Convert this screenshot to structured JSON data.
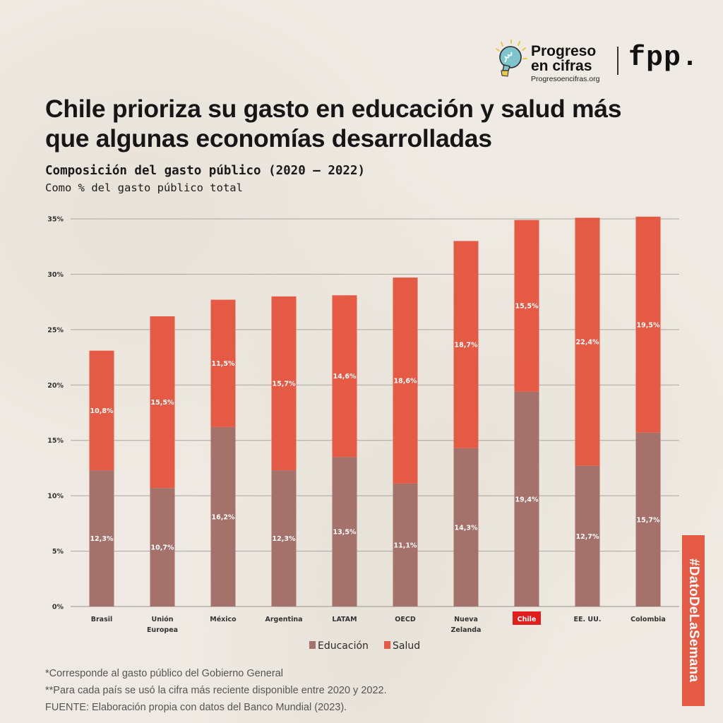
{
  "brand": {
    "logo_line1": "Progreso",
    "logo_line2": "en cifras",
    "logo_url": "Progresoencifras.org",
    "partner": "fpp.",
    "icon": "lightbulb-icon"
  },
  "header": {
    "title": "Chile prioriza su gasto en educación y salud más que algunas economías desarrolladas",
    "subtitle": "Composición del gasto público (2020 – 2022)",
    "subtitle2": "Como % del gasto público total"
  },
  "colors": {
    "educacion": "#a5716b",
    "salud": "#e45a44",
    "highlight": "#e01e1e",
    "grid": "#a9a5a0",
    "background": "#efebe4"
  },
  "chart_data": {
    "type": "bar",
    "stacked": true,
    "title": "Composición del gasto público (2020 – 2022)",
    "subtitle": "Como % del gasto público total",
    "xlabel": "",
    "ylabel": "",
    "ylim": [
      0,
      35
    ],
    "yticks": [
      0,
      5,
      10,
      15,
      20,
      25,
      30,
      35
    ],
    "ytick_labels": [
      "0%",
      "5%",
      "10%",
      "15%",
      "20%",
      "25%",
      "30%",
      "35%"
    ],
    "grid": true,
    "categories": [
      "Brasil",
      "Unión Europea",
      "México",
      "Argentina",
      "LATAM",
      "OECD",
      "Nueva Zelanda",
      "Chile",
      "EE. UU.",
      "Colombia"
    ],
    "category_lines": [
      [
        "Brasil"
      ],
      [
        "Unión",
        "Europea"
      ],
      [
        "México"
      ],
      [
        "Argentina"
      ],
      [
        "LATAM"
      ],
      [
        "OECD"
      ],
      [
        "Nueva",
        "Zelanda"
      ],
      [
        "Chile"
      ],
      [
        "EE. UU."
      ],
      [
        "Colombia"
      ]
    ],
    "highlighted_category": "Chile",
    "series": [
      {
        "name": "Educación",
        "values": [
          12.3,
          10.7,
          16.2,
          12.3,
          13.5,
          11.1,
          14.3,
          19.4,
          12.7,
          15.7
        ],
        "labels": [
          "12,3%",
          "10,7%",
          "16,2%",
          "12,3%",
          "13,5%",
          "11,1%",
          "14,3%",
          "19,4%",
          "12,7%",
          "15,7%"
        ]
      },
      {
        "name": "Salud",
        "values": [
          10.8,
          15.5,
          11.5,
          15.7,
          14.6,
          18.6,
          18.7,
          15.5,
          22.4,
          19.5
        ],
        "labels": [
          "10,8%",
          "15,5%",
          "11,5%",
          "15,7%",
          "14,6%",
          "18,6%",
          "18,7%",
          "15,5%",
          "22,4%",
          "19,5%"
        ]
      }
    ],
    "legend": [
      "Educación",
      "Salud"
    ],
    "legend_position": "bottom-center"
  },
  "notes": [
    "*Corresponde al gasto público del Gobierno General",
    "**Para cada país se usó la cifra más reciente disponible entre 2020 y 2022.",
    "FUENTE: Elaboración propia con datos del Banco Mundial (2023)."
  ],
  "hashtag": "#DatoDeLaSemana"
}
